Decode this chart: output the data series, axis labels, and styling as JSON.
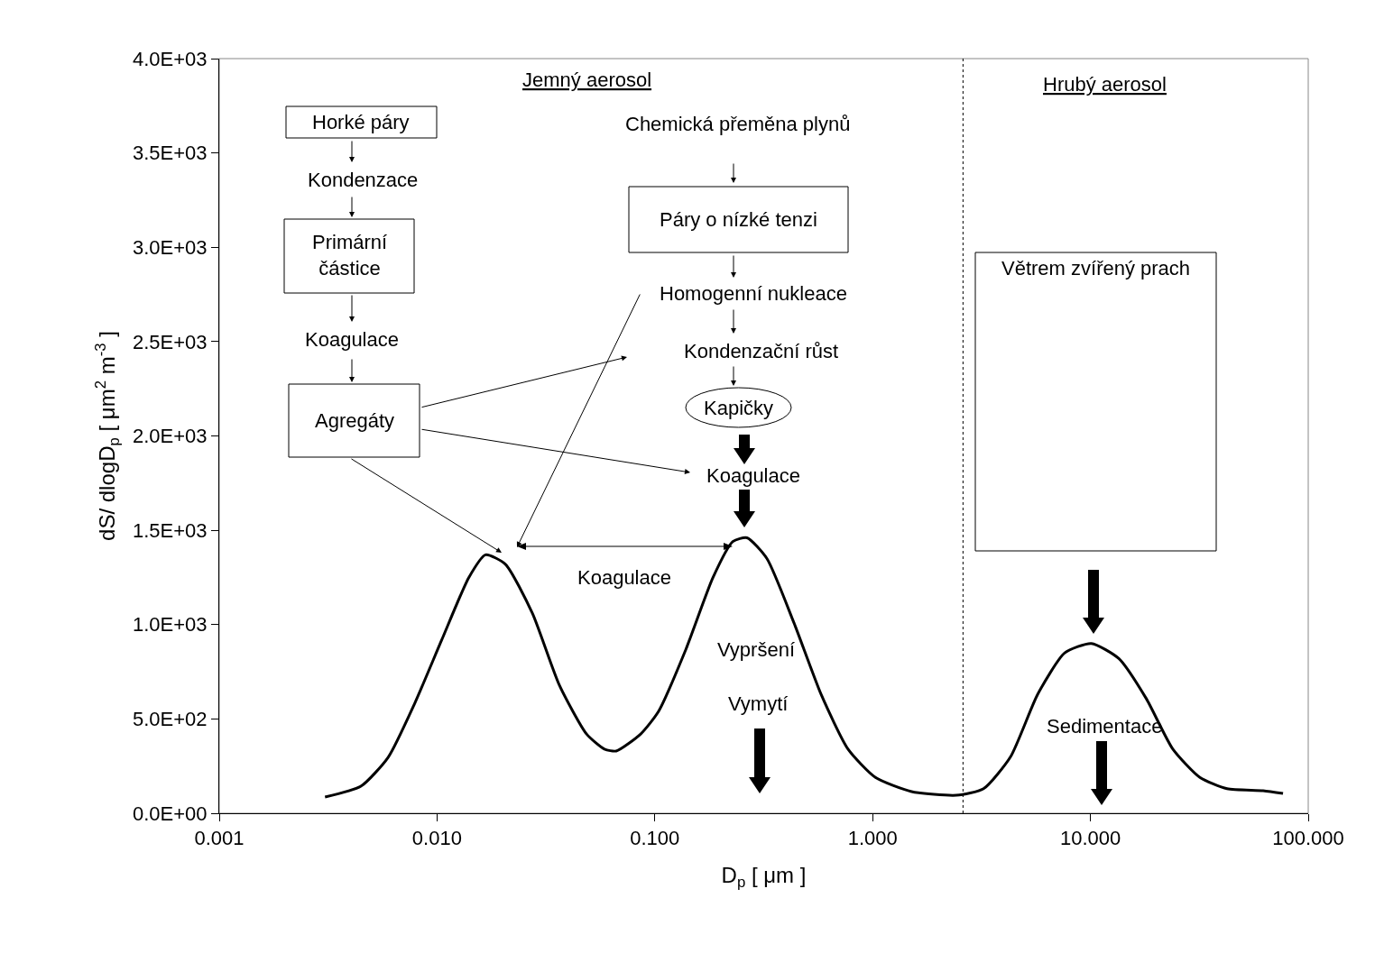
{
  "chart_data": {
    "type": "line",
    "xlabel": "D$_{p}$ [ μm ]",
    "ylabel": "dS/ dlogD$_{p}$ [ μm$^{2}$ m$^{-3}$ ]",
    "color": "#000000",
    "marker": "none",
    "line_style": "solid",
    "log": "x",
    "x": [
      0.00306,
      0.00447,
      0.00596,
      0.0079,
      0.0105,
      0.014,
      0.0167,
      0.0206,
      0.0274,
      0.0364,
      0.0486,
      0.0587,
      0.0665,
      0.0861,
      0.104,
      0.139,
      0.185,
      0.228,
      0.265,
      0.327,
      0.435,
      0.58,
      0.771,
      1.03,
      1.51,
      2.42,
      3.23,
      4.3,
      5.72,
      7.62,
      10.1,
      13.5,
      18,
      23.9,
      31.8,
      42.4,
      62.1,
      76.6
    ],
    "values": [
      86,
      143,
      296,
      583,
      918,
      1250,
      1370,
      1320,
      1060,
      680,
      420,
      340,
      330,
      420,
      540,
      870,
      1250,
      1440,
      1460,
      1350,
      1010,
      630,
      340,
      190,
      115,
      95,
      130,
      300,
      630,
      850,
      900,
      820,
      610,
      340,
      190,
      130,
      120,
      105
    ],
    "xlim": [
      0.001,
      100
    ],
    "xticks": [
      0.001,
      {
        "value": 0.01,
        "label": "0.010"
      },
      {
        "value": 0.1,
        "label": "0.100"
      },
      {
        "value": 1,
        "label": "1.000"
      },
      {
        "value": 10,
        "label": "10.000"
      },
      {
        "value": 100,
        "label": "100.000"
      }
    ],
    "ylim": [
      0,
      4000
    ],
    "yticks": [
      {
        "value": 0,
        "label": "0.0E+00"
      },
      {
        "value": 500,
        "label": "5.0E+02"
      },
      {
        "value": 1000,
        "label": "1.0E+03"
      },
      {
        "value": 1500,
        "label": "1.5E+03"
      },
      {
        "value": 2000,
        "label": "2.0E+03"
      },
      {
        "value": 2500,
        "label": "2.5E+03"
      },
      {
        "value": 3000,
        "label": "3.0E+03"
      },
      {
        "value": 3500,
        "label": "3.5E+03"
      },
      {
        "value": 4000,
        "label": "4.0E+03"
      }
    ],
    "ref_lines": [
      {
        "axis": "x",
        "value": 2.6,
        "line_style": "dotted",
        "color": "#000000"
      }
    ],
    "annotations": [
      "Jemný aerosol",
      "Hrubý aerosol",
      "Horké páry",
      "Kondenzace",
      "Primární\nčástice",
      "Koagulace",
      "Agregáty",
      "Chemická přeměna plynů",
      "Páry o nízké tenzi",
      "Homogenní nukleace",
      "Kondenzační růst",
      "Kapičky",
      "Koagulace",
      "Koagulace",
      "Vypršení",
      "Vymytí",
      "Větrem zvířený prach",
      "Sedimentace"
    ]
  }
}
